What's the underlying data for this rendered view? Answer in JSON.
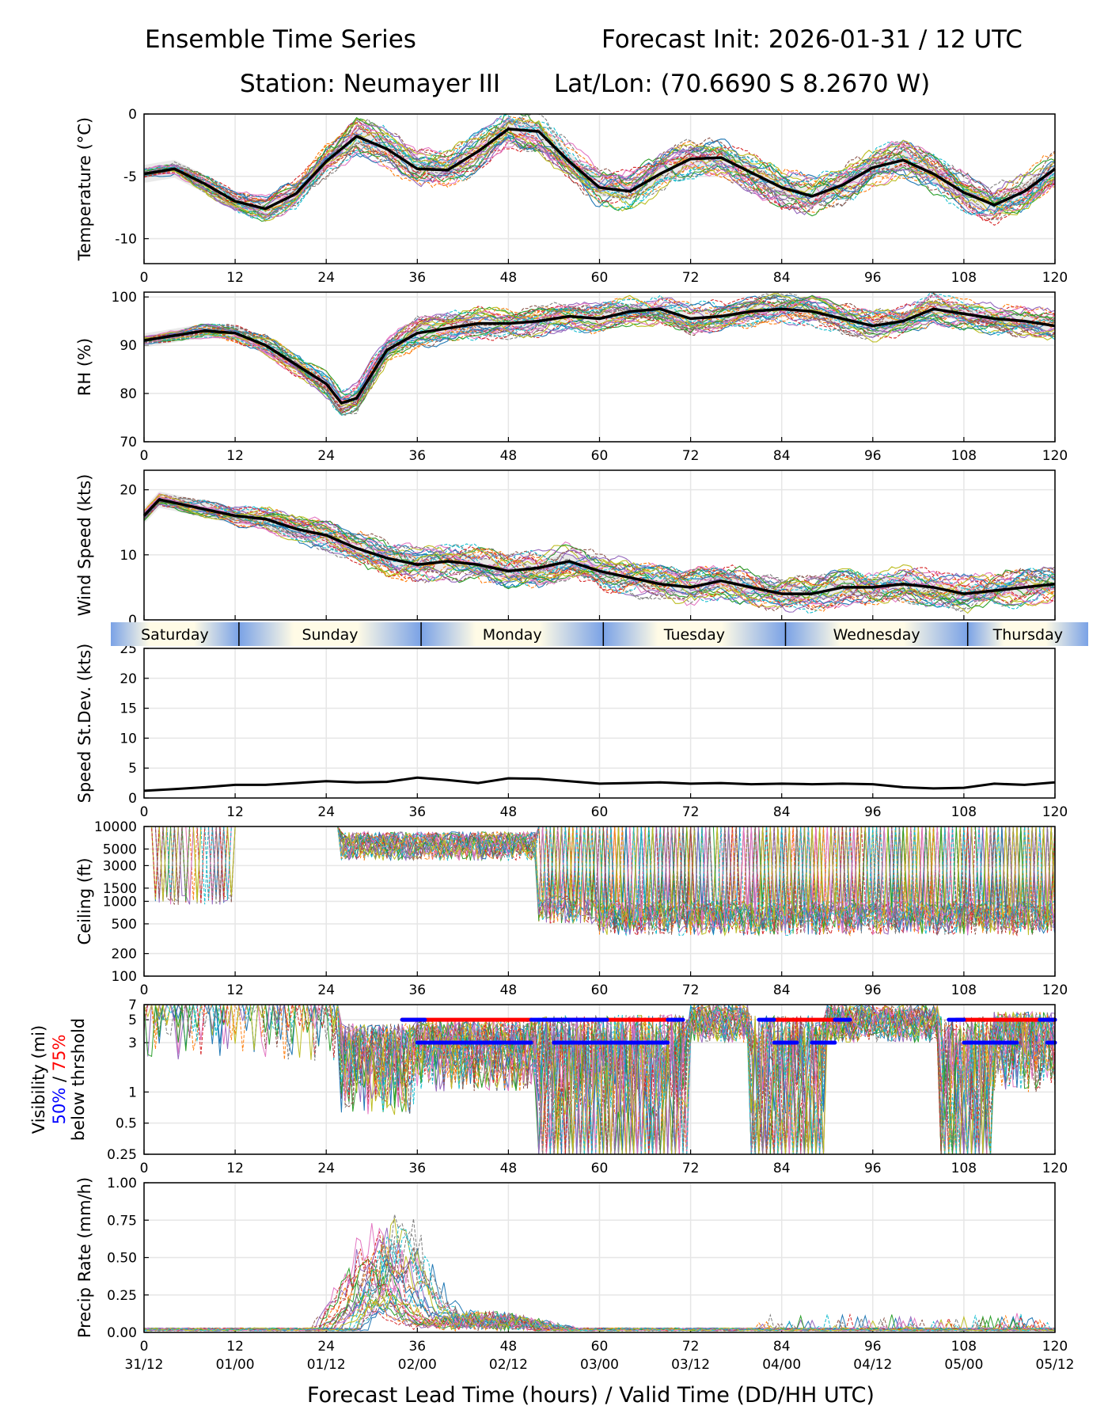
{
  "header": {
    "title": "Ensemble Time Series",
    "init": "Forecast Init: 2026-01-31 / 12 UTC",
    "station": "Station: Neumayer III",
    "latlon": "Lat/Lon: (70.6690 S 8.2670 W)"
  },
  "x_axis": {
    "label": "Forecast Lead Time (hours) / Valid Time (DD/HH UTC)",
    "range": [
      0,
      120
    ],
    "ticks": [
      0,
      12,
      24,
      36,
      48,
      60,
      72,
      84,
      96,
      108,
      120
    ],
    "tick_labels": [
      "0",
      "12",
      "24",
      "36",
      "48",
      "60",
      "72",
      "84",
      "96",
      "108",
      "120"
    ],
    "valid_labels": [
      "31/12",
      "01/00",
      "01/12",
      "02/00",
      "02/12",
      "03/00",
      "03/12",
      "04/00",
      "04/12",
      "05/00",
      "05/12"
    ]
  },
  "day_strip": {
    "days": [
      {
        "label": "Saturday",
        "start": 0,
        "end": 12.5
      },
      {
        "label": "Sunday",
        "start": 12.5,
        "end": 36.5
      },
      {
        "label": "Monday",
        "start": 36.5,
        "end": 60.5
      },
      {
        "label": "Tuesday",
        "start": 60.5,
        "end": 84.5
      },
      {
        "label": "Wednesday",
        "start": 84.5,
        "end": 108.5
      },
      {
        "label": "Thursday",
        "start": 108.5,
        "end": 120
      }
    ]
  },
  "chart_data": [
    {
      "type": "line",
      "panel": "temperature",
      "ylabel": "Temperature (°C)",
      "ylim": [
        -12,
        0
      ],
      "yticks": [
        0,
        -5,
        -10
      ],
      "ytick_labels": [
        "0",
        "-5",
        "-10"
      ],
      "grid": true,
      "members": 30,
      "series": [
        {
          "name": "ensemble mean",
          "x": [
            0,
            4,
            8,
            12,
            16,
            20,
            24,
            28,
            32,
            36,
            40,
            44,
            48,
            52,
            56,
            60,
            64,
            68,
            72,
            76,
            80,
            84,
            88,
            92,
            96,
            100,
            104,
            108,
            112,
            116,
            120
          ],
          "values": [
            -4.8,
            -4.4,
            -5.6,
            -7.0,
            -7.6,
            -6.4,
            -3.8,
            -1.8,
            -2.8,
            -4.4,
            -4.5,
            -3.0,
            -1.2,
            -1.4,
            -3.8,
            -5.9,
            -6.2,
            -4.8,
            -3.6,
            -3.5,
            -4.7,
            -5.9,
            -6.6,
            -5.7,
            -4.3,
            -3.7,
            -4.8,
            -6.3,
            -7.3,
            -6.2,
            -4.4
          ]
        }
      ]
    },
    {
      "type": "line",
      "panel": "relative_humidity",
      "ylabel": "RH (%)",
      "ylim": [
        70,
        101
      ],
      "yticks": [
        70,
        80,
        90,
        100
      ],
      "ytick_labels": [
        "70",
        "80",
        "90",
        "100"
      ],
      "grid": true,
      "members": 30,
      "series": [
        {
          "name": "ensemble mean",
          "x": [
            0,
            4,
            8,
            12,
            16,
            20,
            24,
            26,
            28,
            32,
            36,
            40,
            44,
            48,
            52,
            56,
            60,
            64,
            68,
            72,
            76,
            80,
            84,
            88,
            92,
            96,
            100,
            104,
            108,
            112,
            116,
            120
          ],
          "values": [
            91,
            92,
            93,
            92.5,
            90,
            86,
            82,
            78,
            79,
            89,
            92.5,
            93.5,
            94.5,
            94.5,
            95,
            96,
            95.5,
            97,
            97.5,
            95.5,
            96,
            97,
            97.5,
            97,
            95.5,
            94,
            95,
            97.5,
            96.5,
            95.5,
            95,
            94
          ]
        }
      ]
    },
    {
      "type": "line",
      "panel": "wind_speed",
      "ylabel": "Wind Speed (kts)",
      "ylim": [
        0,
        23
      ],
      "yticks": [
        0,
        10,
        20
      ],
      "ytick_labels": [
        "0",
        "10",
        "20"
      ],
      "grid": true,
      "members": 30,
      "series": [
        {
          "name": "ensemble mean",
          "x": [
            0,
            2,
            4,
            8,
            12,
            16,
            20,
            24,
            28,
            32,
            36,
            40,
            44,
            48,
            52,
            56,
            60,
            64,
            68,
            72,
            76,
            80,
            84,
            88,
            92,
            96,
            100,
            104,
            108,
            112,
            116,
            120
          ],
          "values": [
            16,
            18.5,
            18,
            17,
            16,
            15.5,
            14,
            13,
            11,
            9.5,
            8.5,
            9,
            8.5,
            7.5,
            8,
            9,
            7.5,
            6.5,
            5.5,
            5,
            6,
            5,
            4,
            4,
            5,
            5,
            5.5,
            5,
            4,
            4.5,
            5,
            5.5
          ]
        }
      ]
    },
    {
      "type": "line",
      "panel": "speed_stdev",
      "ylabel": "Speed St.Dev. (kts)",
      "ylim": [
        0,
        25
      ],
      "yticks": [
        0,
        5,
        10,
        15,
        20,
        25
      ],
      "ytick_labels": [
        "0",
        "5",
        "10",
        "15",
        "20",
        "25"
      ],
      "grid": true,
      "series": [
        {
          "name": "wind speed st.dev.",
          "x": [
            0,
            4,
            8,
            12,
            16,
            20,
            24,
            28,
            32,
            36,
            40,
            44,
            48,
            52,
            56,
            60,
            64,
            68,
            72,
            76,
            80,
            84,
            88,
            92,
            96,
            100,
            104,
            108,
            112,
            116,
            120
          ],
          "values": [
            1.2,
            1.5,
            1.8,
            2.2,
            2.2,
            2.5,
            2.8,
            2.6,
            2.7,
            3.4,
            3.0,
            2.5,
            3.3,
            3.2,
            2.8,
            2.4,
            2.5,
            2.6,
            2.4,
            2.5,
            2.3,
            2.4,
            2.3,
            2.4,
            2.3,
            1.8,
            1.6,
            1.7,
            2.4,
            2.2,
            2.6
          ]
        }
      ]
    },
    {
      "type": "line",
      "panel": "ceiling",
      "ylabel": "Ceiling (ft)",
      "yscale": "log",
      "ylim": [
        100,
        10000
      ],
      "yticks": [
        100,
        200,
        500,
        1000,
        1500,
        3000,
        5000,
        10000
      ],
      "ytick_labels": [
        "100",
        "200",
        "500",
        "1000",
        "1500",
        "3000",
        "5000",
        "10000"
      ],
      "grid": true,
      "members": 30
    },
    {
      "type": "line",
      "panel": "visibility",
      "ylabel": "Visibility (mi)",
      "ylabel_line2_blue": "50%",
      "ylabel_line2_sep": " / ",
      "ylabel_line2_red": "75%",
      "ylabel_line3": "below thrshold",
      "yscale": "log",
      "ylim": [
        0.25,
        7
      ],
      "yticks": [
        0.25,
        0.5,
        1,
        3,
        5,
        7
      ],
      "ytick_labels": [
        "0.25",
        "0.5",
        "1",
        "3",
        "5",
        "7"
      ],
      "grid": true,
      "members": 30,
      "threshold_bars": [
        {
          "level": 5,
          "color": "red",
          "segments": [
            [
              34,
              51
            ],
            [
              54,
              69
            ],
            [
              82,
              92
            ],
            [
              107,
              120
            ]
          ]
        },
        {
          "level": 5,
          "color": "blue",
          "segments": [
            [
              34,
              37
            ],
            [
              51,
              61
            ],
            [
              69,
              71
            ],
            [
              81,
              83
            ],
            [
              91,
              93
            ],
            [
              106,
              108
            ],
            [
              118,
              120
            ]
          ]
        },
        {
          "level": 3,
          "color": "blue",
          "segments": [
            [
              36,
              51
            ],
            [
              54,
              69
            ],
            [
              83,
              86
            ],
            [
              88,
              91
            ],
            [
              108,
              115
            ],
            [
              119,
              120
            ]
          ]
        }
      ]
    },
    {
      "type": "line",
      "panel": "precip_rate",
      "ylabel": "Precip Rate (mm/h)",
      "ylim": [
        0,
        1.0
      ],
      "yticks": [
        0,
        0.25,
        0.5,
        0.75,
        1.0
      ],
      "ytick_labels": [
        "0.00",
        "0.25",
        "0.50",
        "0.75",
        "1.00"
      ],
      "grid": true,
      "members": 30
    }
  ]
}
